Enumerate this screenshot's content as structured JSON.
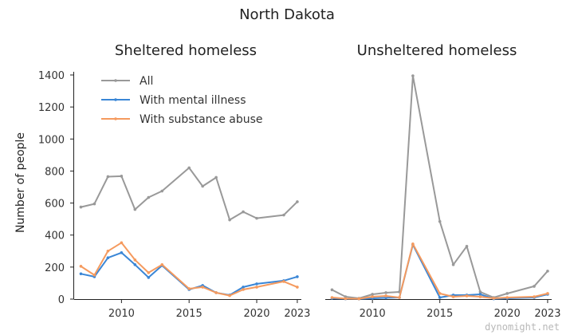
{
  "title": "North Dakota",
  "watermark": "dynomight.net",
  "colors": {
    "all": "#999999",
    "mental": "#3a86d6",
    "substance": "#f59a5e"
  },
  "chart_data": [
    {
      "type": "line",
      "title": "Sheltered homeless",
      "ylabel": "Number of people",
      "xlabel": "",
      "xlim": [
        2006.5,
        2023.3
      ],
      "ylim": [
        0,
        1400
      ],
      "xticks": [
        2010,
        2015,
        2020,
        2023
      ],
      "yticks": [
        0,
        200,
        400,
        600,
        800,
        1000,
        1200,
        1400
      ],
      "legend": "top-left",
      "grid": false,
      "series": [
        {
          "name": "All",
          "color_key": "all",
          "x": [
            2007,
            2008,
            2009,
            2010,
            2011,
            2012,
            2013,
            2015,
            2016,
            2017,
            2018,
            2019,
            2020,
            2022,
            2023
          ],
          "values": [
            575,
            595,
            765,
            768,
            560,
            635,
            675,
            820,
            705,
            760,
            495,
            545,
            505,
            525,
            608
          ]
        },
        {
          "name": "With mental illness",
          "color_key": "mental",
          "x": [
            2007,
            2008,
            2009,
            2010,
            2011,
            2012,
            2013,
            2015,
            2016,
            2017,
            2018,
            2019,
            2020,
            2022,
            2023
          ],
          "values": [
            158,
            140,
            258,
            290,
            215,
            135,
            210,
            60,
            85,
            40,
            25,
            75,
            95,
            115,
            140
          ]
        },
        {
          "name": "With substance abuse",
          "color_key": "substance",
          "x": [
            2007,
            2008,
            2009,
            2010,
            2011,
            2012,
            2013,
            2015,
            2016,
            2017,
            2018,
            2019,
            2020,
            2022,
            2023
          ],
          "values": [
            205,
            150,
            300,
            352,
            245,
            165,
            215,
            65,
            75,
            40,
            22,
            60,
            75,
            110,
            75
          ]
        }
      ]
    },
    {
      "type": "line",
      "title": "Unsheltered homeless",
      "xlabel": "",
      "xlim": [
        2006.5,
        2023.3
      ],
      "ylim": [
        0,
        1400
      ],
      "xticks": [
        2010,
        2015,
        2020,
        2023
      ],
      "grid": false,
      "series": [
        {
          "name": "All",
          "color_key": "all",
          "x": [
            2007,
            2008,
            2009,
            2010,
            2011,
            2012,
            2013,
            2015,
            2016,
            2017,
            2018,
            2019,
            2020,
            2022,
            2023
          ],
          "values": [
            58,
            15,
            5,
            30,
            40,
            45,
            1395,
            485,
            215,
            330,
            45,
            10,
            35,
            80,
            175
          ]
        },
        {
          "name": "With mental illness",
          "color_key": "mental",
          "x": [
            2007,
            2008,
            2009,
            2010,
            2011,
            2012,
            2013,
            2015,
            2016,
            2017,
            2018,
            2019,
            2020,
            2022,
            2023
          ],
          "values": [
            5,
            2,
            1,
            5,
            8,
            10,
            340,
            10,
            25,
            25,
            30,
            2,
            5,
            10,
            30
          ]
        },
        {
          "name": "With substance abuse",
          "color_key": "substance",
          "x": [
            2007,
            2008,
            2009,
            2010,
            2011,
            2012,
            2013,
            2015,
            2016,
            2017,
            2018,
            2019,
            2020,
            2022,
            2023
          ],
          "values": [
            10,
            3,
            2,
            15,
            20,
            10,
            345,
            35,
            15,
            20,
            15,
            5,
            10,
            15,
            35
          ]
        }
      ]
    }
  ]
}
